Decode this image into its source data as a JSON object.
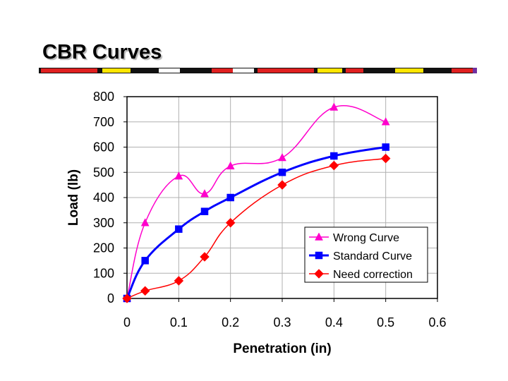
{
  "slide": {
    "title": "CBR Curves"
  },
  "colors": {
    "wrong": "#ff00cc",
    "standard": "#0000ff",
    "correction": "#ff0000",
    "grid": "#b0b0b0"
  },
  "chart_data": {
    "type": "line",
    "title": "",
    "xlabel": "Penetration (in)",
    "ylabel": "Load (lb)",
    "xlim": [
      0,
      0.6
    ],
    "ylim": [
      0,
      800
    ],
    "x_ticks": [
      "0",
      "0.1",
      "0.2",
      "0.3",
      "0.4",
      "0.5",
      "0.6"
    ],
    "y_ticks": [
      "0",
      "100",
      "200",
      "300",
      "400",
      "500",
      "600",
      "700",
      "800"
    ],
    "grid": true,
    "legend_position": "lower-right",
    "series": [
      {
        "name": "Wrong Curve",
        "color": "#ff00cc",
        "marker": "triangle",
        "x": [
          0,
          0.035,
          0.1,
          0.15,
          0.2,
          0.3,
          0.4,
          0.5
        ],
        "y": [
          0,
          300,
          485,
          415,
          525,
          558,
          758,
          700
        ]
      },
      {
        "name": "Standard Curve",
        "color": "#0000ff",
        "marker": "square",
        "x": [
          0,
          0.035,
          0.1,
          0.15,
          0.2,
          0.3,
          0.4,
          0.5
        ],
        "y": [
          0,
          150,
          275,
          345,
          400,
          500,
          565,
          600
        ]
      },
      {
        "name": "Need correction",
        "color": "#ff0000",
        "marker": "diamond",
        "x": [
          0,
          0.035,
          0.1,
          0.15,
          0.2,
          0.3,
          0.4,
          0.5
        ],
        "y": [
          0,
          30,
          70,
          165,
          300,
          450,
          527,
          555
        ]
      }
    ]
  }
}
